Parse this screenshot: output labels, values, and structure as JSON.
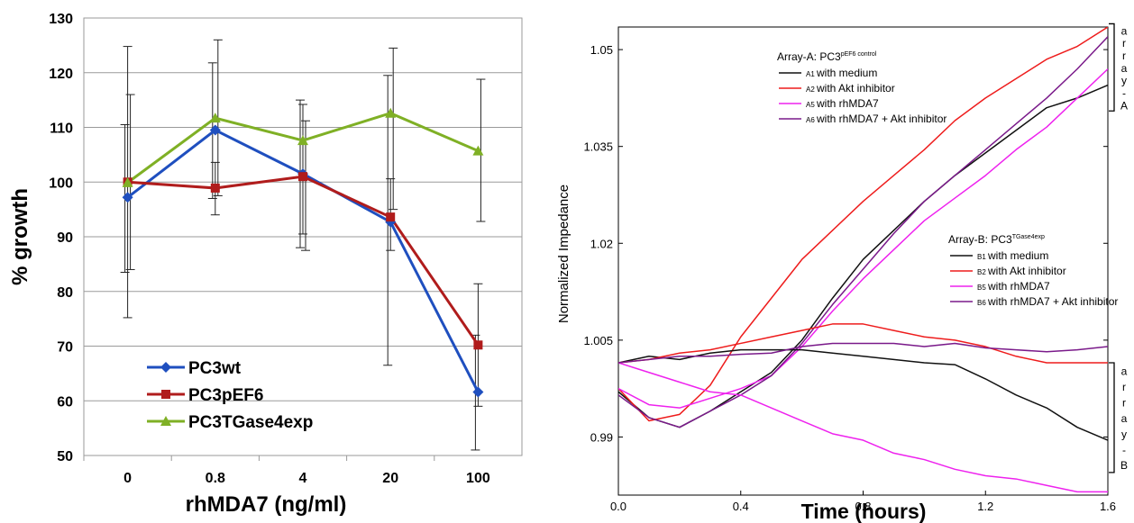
{
  "chart_data": [
    {
      "type": "line",
      "title": "",
      "xlabel": "rhMDA7 (ng/ml)",
      "ylabel": "% growth",
      "categories": [
        "0",
        "0.8",
        "4",
        "20",
        "100"
      ],
      "ylim": [
        50,
        130
      ],
      "yticks": [
        "50",
        "60",
        "70",
        "80",
        "90",
        "100",
        "110",
        "120",
        "130"
      ],
      "grid": true,
      "legend_position": "bottom-left",
      "series": [
        {
          "name": "PC3wt",
          "color": "#1f4fbf",
          "marker": "diamond",
          "values": [
            97.2,
            109.5,
            101.5,
            92.7,
            61.6
          ],
          "error": [
            [
              83.5,
              110.5
            ],
            [
              97.0,
              121.8
            ],
            [
              88.0,
              115.0
            ],
            [
              66.5,
              119.5
            ],
            [
              51.0,
              72.0
            ]
          ]
        },
        {
          "name": "PC3pEF6",
          "color": "#b01c1c",
          "marker": "square",
          "values": [
            100.0,
            98.9,
            101.0,
            93.6,
            70.2
          ],
          "error": [
            [
              75.2,
              124.8
            ],
            [
              94.0,
              103.6
            ],
            [
              90.5,
              114.2
            ],
            [
              87.5,
              100.6
            ],
            [
              59.0,
              81.4
            ]
          ]
        },
        {
          "name": "PC3TGase4exp",
          "color": "#7fb025",
          "marker": "triangle",
          "values": [
            99.9,
            111.7,
            107.6,
            112.6,
            105.7
          ],
          "error": [
            [
              84.0,
              116.0
            ],
            [
              97.5,
              126.0
            ],
            [
              87.5,
              111.2
            ],
            [
              95.0,
              124.5
            ],
            [
              92.8,
              118.8
            ]
          ]
        }
      ]
    },
    {
      "type": "line",
      "title": "",
      "xlabel": "Time (hours)",
      "ylabel": "Normalized Impedance",
      "xlim": [
        0.0,
        1.6
      ],
      "ylim": [
        0.981,
        1.0535
      ],
      "xticks": [
        "0.0",
        "0.4",
        "0.8",
        "1.2",
        "1.6"
      ],
      "yticks": [
        "0.99",
        "1.005",
        "1.02",
        "1.035",
        "1.05"
      ],
      "grid": false,
      "legends": [
        {
          "title_prefix": "Array-A: PC3",
          "title_super": "pEF6 control",
          "items": [
            {
              "id": "A1",
              "label": "with medium",
              "color": "#111111"
            },
            {
              "id": "A2",
              "label": "with Akt inhibitor",
              "color": "#ee1c1c"
            },
            {
              "id": "A5",
              "label": "with rhMDA7",
              "color": "#ee22ee"
            },
            {
              "id": "A6",
              "label": "with rhMDA7 + Akt inhibitor",
              "color": "#7a1a8a"
            }
          ]
        },
        {
          "title_prefix": "Array-B: PC3",
          "title_super": "TGase4exp",
          "items": [
            {
              "id": "B1",
              "label": "with medium",
              "color": "#111111"
            },
            {
              "id": "B2",
              "label": "with Akt inhibitor",
              "color": "#ee1c1c"
            },
            {
              "id": "B5",
              "label": "with rhMDA7",
              "color": "#ee22ee"
            },
            {
              "id": "B6",
              "label": "with rhMDA7 + Akt inhibitor",
              "color": "#7a1a8a"
            }
          ]
        }
      ],
      "brackets": [
        {
          "label": "array-A",
          "chars": [
            "a",
            "r",
            "r",
            "a",
            "y",
            "-",
            "A"
          ]
        },
        {
          "label": "array-B",
          "chars": [
            "a",
            "r",
            "r",
            "a",
            "y",
            "-",
            "B"
          ]
        }
      ],
      "series": [
        {
          "name": "A1 with medium",
          "color": "#111111",
          "x": [
            0,
            0.1,
            0.2,
            0.3,
            0.4,
            0.5,
            0.6,
            0.7,
            0.8,
            0.9,
            1.0,
            1.1,
            1.2,
            1.3,
            1.4,
            1.5,
            1.6
          ],
          "y": [
            0.997,
            0.993,
            0.9915,
            0.994,
            0.997,
            1.0,
            1.005,
            1.0115,
            1.0175,
            1.022,
            1.0265,
            1.0305,
            1.034,
            1.0375,
            1.041,
            1.0425,
            1.0445
          ]
        },
        {
          "name": "A2 with Akt inhibitor",
          "color": "#ee1c1c",
          "x": [
            0,
            0.1,
            0.2,
            0.3,
            0.4,
            0.5,
            0.6,
            0.7,
            0.8,
            0.9,
            1.0,
            1.1,
            1.2,
            1.3,
            1.4,
            1.5,
            1.6
          ],
          "y": [
            0.9975,
            0.9925,
            0.9935,
            0.998,
            1.0055,
            1.0115,
            1.0175,
            1.022,
            1.0265,
            1.0305,
            1.0345,
            1.039,
            1.0425,
            1.0455,
            1.0485,
            1.0505,
            1.0535
          ]
        },
        {
          "name": "A5 with rhMDA7",
          "color": "#ee22ee",
          "x": [
            0,
            0.1,
            0.2,
            0.3,
            0.4,
            0.5,
            0.6,
            0.7,
            0.8,
            0.9,
            1.0,
            1.1,
            1.2,
            1.3,
            1.4,
            1.5,
            1.6
          ],
          "y": [
            0.9975,
            0.995,
            0.9945,
            0.996,
            0.9975,
            0.9995,
            1.004,
            1.0095,
            1.0145,
            1.019,
            1.0235,
            1.027,
            1.0305,
            1.0345,
            1.038,
            1.0425,
            1.047
          ]
        },
        {
          "name": "A6 with rhMDA7 + Akt inhibitor",
          "color": "#7a1a8a",
          "x": [
            0,
            0.1,
            0.2,
            0.3,
            0.4,
            0.5,
            0.6,
            0.7,
            0.8,
            0.9,
            1.0,
            1.1,
            1.2,
            1.3,
            1.4,
            1.5,
            1.6
          ],
          "y": [
            0.9965,
            0.993,
            0.9915,
            0.994,
            0.9965,
            0.9995,
            1.0045,
            1.0105,
            1.016,
            1.0215,
            1.0265,
            1.0305,
            1.0345,
            1.0385,
            1.0425,
            1.047,
            1.052
          ]
        },
        {
          "name": "B1 with medium",
          "color": "#111111",
          "x": [
            0,
            0.1,
            0.2,
            0.3,
            0.4,
            0.5,
            0.6,
            0.7,
            0.8,
            0.9,
            1.0,
            1.1,
            1.2,
            1.3,
            1.4,
            1.5,
            1.6
          ],
          "y": [
            1.0015,
            1.0025,
            1.002,
            1.003,
            1.0035,
            1.0035,
            1.0035,
            1.003,
            1.0025,
            1.002,
            1.0015,
            1.0012,
            0.999,
            0.9965,
            0.9945,
            0.9915,
            0.9895
          ]
        },
        {
          "name": "B2 with Akt inhibitor",
          "color": "#ee1c1c",
          "x": [
            0,
            0.1,
            0.2,
            0.3,
            0.4,
            0.5,
            0.6,
            0.7,
            0.8,
            0.9,
            1.0,
            1.1,
            1.2,
            1.3,
            1.4,
            1.5,
            1.6
          ],
          "y": [
            1.0015,
            1.002,
            1.003,
            1.0035,
            1.0045,
            1.0055,
            1.0065,
            1.0075,
            1.0075,
            1.0065,
            1.0055,
            1.005,
            1.004,
            1.0025,
            1.0015,
            1.0015,
            1.0015
          ]
        },
        {
          "name": "B5 with rhMDA7",
          "color": "#ee22ee",
          "x": [
            0,
            0.1,
            0.2,
            0.3,
            0.4,
            0.5,
            0.6,
            0.7,
            0.8,
            0.9,
            1.0,
            1.1,
            1.2,
            1.3,
            1.4,
            1.5,
            1.6
          ],
          "y": [
            1.0015,
            1.0,
            0.9985,
            0.997,
            0.9965,
            0.9945,
            0.9925,
            0.9905,
            0.9895,
            0.9875,
            0.9865,
            0.985,
            0.984,
            0.9835,
            0.9825,
            0.9815,
            0.9815
          ]
        },
        {
          "name": "B6 with rhMDA7 + Akt inhibitor",
          "color": "#7a1a8a",
          "x": [
            0,
            0.1,
            0.2,
            0.3,
            0.4,
            0.5,
            0.6,
            0.7,
            0.8,
            0.9,
            1.0,
            1.1,
            1.2,
            1.3,
            1.4,
            1.5,
            1.6
          ],
          "y": [
            1.0015,
            1.002,
            1.0025,
            1.0025,
            1.0028,
            1.003,
            1.004,
            1.0045,
            1.0045,
            1.0045,
            1.004,
            1.0045,
            1.0038,
            1.0035,
            1.0032,
            1.0035,
            1.004
          ]
        }
      ]
    }
  ]
}
